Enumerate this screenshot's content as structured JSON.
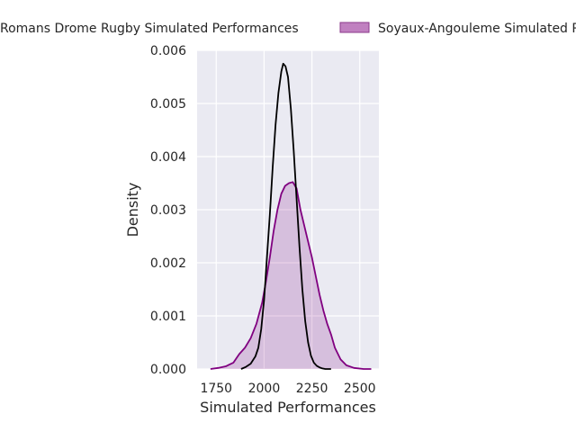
{
  "chart_data": {
    "type": "area",
    "xlabel": "Simulated Performances",
    "ylabel": "Density",
    "xlim": [
      1650,
      2600
    ],
    "ylim": [
      0,
      0.006
    ],
    "x_ticks": [
      1750,
      2000,
      2250,
      2500
    ],
    "y_ticks": [
      0,
      0.001,
      0.002,
      0.003,
      0.004,
      0.005,
      0.006
    ],
    "x_tick_labels": [
      "1750",
      "2000",
      "2250",
      "2500"
    ],
    "y_tick_labels": [
      "0.000",
      "0.001",
      "0.002",
      "0.003",
      "0.004",
      "0.005",
      "0.006"
    ],
    "grid": true,
    "legend_position": "top",
    "background_color": "#eaeaf2",
    "series": [
      {
        "name": "Romans Drome Rugby Simulated Performances",
        "color": "#000000",
        "filled": false,
        "x": [
          1880,
          1905,
          1930,
          1955,
          1970,
          1985,
          2000,
          2015,
          2030,
          2045,
          2060,
          2075,
          2090,
          2100,
          2112,
          2125,
          2140,
          2155,
          2170,
          2185,
          2200,
          2215,
          2230,
          2245,
          2260,
          2275,
          2290,
          2305,
          2320,
          2335,
          2350
        ],
        "y": [
          0.0,
          4e-05,
          0.0001,
          0.00024,
          0.0004,
          0.00075,
          0.0013,
          0.0021,
          0.0029,
          0.0038,
          0.0046,
          0.0052,
          0.0056,
          0.00575,
          0.0057,
          0.0055,
          0.0049,
          0.0041,
          0.0032,
          0.0023,
          0.0015,
          0.0009,
          0.0005,
          0.00025,
          0.00012,
          6e-05,
          3e-05,
          1e-05,
          0.0,
          0.0,
          0.0
        ]
      },
      {
        "name": "Soyaux-Angouleme Simulated Performances",
        "color": "#800080",
        "filled": true,
        "x": [
          1720,
          1760,
          1800,
          1840,
          1870,
          1900,
          1930,
          1960,
          1990,
          2010,
          2030,
          2050,
          2070,
          2090,
          2110,
          2130,
          2150,
          2170,
          2190,
          2210,
          2230,
          2250,
          2270,
          2290,
          2310,
          2330,
          2350,
          2370,
          2400,
          2430,
          2470,
          2520,
          2560
        ],
        "y": [
          0.0,
          2e-05,
          5e-05,
          0.00012,
          0.00028,
          0.0004,
          0.00058,
          0.00085,
          0.00125,
          0.00165,
          0.0021,
          0.0026,
          0.003,
          0.0033,
          0.00345,
          0.0035,
          0.00352,
          0.0034,
          0.003,
          0.0027,
          0.0024,
          0.0021,
          0.00175,
          0.0014,
          0.0011,
          0.00085,
          0.00065,
          0.0004,
          0.00018,
          7e-05,
          2e-05,
          0.0,
          0.0
        ]
      }
    ]
  }
}
